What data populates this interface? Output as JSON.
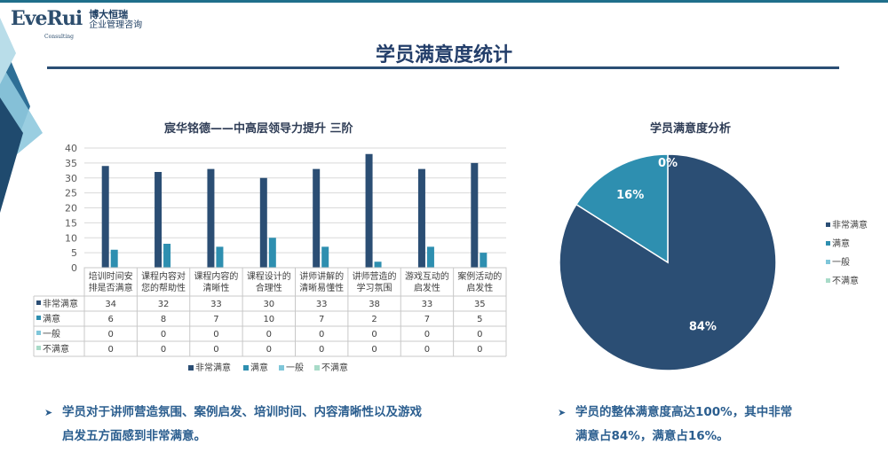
{
  "logo": {
    "wordmark": "EveRui",
    "tagline": "Consulting",
    "cn_name": "博大恒瑞",
    "cn_sub": "企业管理咨询"
  },
  "page_title": "学员满意度统计",
  "chart_data": [
    {
      "type": "bar",
      "title": "宸华铭德——中高层领导力提升 三阶",
      "categories": [
        "培训时间安排是否满意",
        "课程内容对您的帮助性",
        "课程内容的清晰性",
        "课程设计的合理性",
        "讲师讲解的清晰易懂性",
        "讲师营造的学习氛围",
        "游戏互动的启发性",
        "案例活动的启发性"
      ],
      "category_lines": [
        [
          "培训时间安",
          "排是否满意"
        ],
        [
          "课程内容对",
          "您的帮助性"
        ],
        [
          "课程内容的",
          "清晰性"
        ],
        [
          "课程设计的",
          "合理性"
        ],
        [
          "讲师讲解的",
          "清晰易懂性"
        ],
        [
          "讲师营造的",
          "学习氛围"
        ],
        [
          "游戏互动的",
          "启发性"
        ],
        [
          "案例活动的",
          "启发性"
        ]
      ],
      "series": [
        {
          "name": "非常满意",
          "color": "#2b4e74",
          "values": [
            34,
            32,
            33,
            30,
            33,
            38,
            33,
            35
          ]
        },
        {
          "name": "满意",
          "color": "#2e8fb0",
          "values": [
            6,
            8,
            7,
            10,
            7,
            2,
            7,
            5
          ]
        },
        {
          "name": "一般",
          "color": "#7fc6d9",
          "values": [
            0,
            0,
            0,
            0,
            0,
            0,
            0,
            0
          ]
        },
        {
          "name": "不满意",
          "color": "#a8dbc8",
          "values": [
            0,
            0,
            0,
            0,
            0,
            0,
            0,
            0
          ]
        }
      ],
      "ylim": [
        0,
        40
      ],
      "yticks": [
        0,
        5,
        10,
        15,
        20,
        25,
        30,
        35,
        40
      ],
      "grid": true,
      "data_table": true,
      "legend": "bottom"
    },
    {
      "type": "pie",
      "title": "学员满意度分析",
      "slices": [
        {
          "name": "非常满意",
          "value": 84,
          "label": "84%",
          "color": "#2b4e74"
        },
        {
          "name": "满意",
          "value": 16,
          "label": "16%",
          "color": "#2e8fb0"
        },
        {
          "name": "一般",
          "value": 0,
          "label": "0%",
          "color": "#7fc6d9"
        },
        {
          "name": "不满意",
          "value": 0,
          "label": "",
          "color": "#a8dbc8"
        }
      ],
      "legend": "right"
    }
  ],
  "bullets": [
    {
      "lines": [
        "学员对于讲师营造氛围、案例启发、培训时间、内容清晰性以及游戏",
        "启发五方面感到非常满意。"
      ]
    },
    {
      "lines": [
        "学员的整体满意度高达100%，其中非常",
        "满意占84%，满意占16%。"
      ]
    }
  ],
  "colors": {
    "accent": "#2b4e74",
    "title": "#233e6a",
    "bullet_text": "#2b5e8f"
  }
}
